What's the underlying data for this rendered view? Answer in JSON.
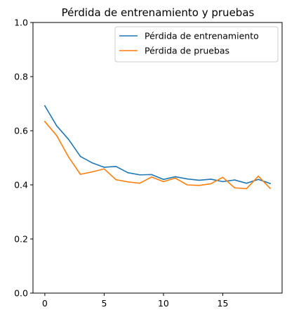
{
  "chart_data": {
    "type": "line",
    "title": "Pérdida de entrenamiento y pruebas",
    "xlabel": "",
    "ylabel": "",
    "xlim": [
      -1,
      20
    ],
    "ylim": [
      0,
      1
    ],
    "xticks": [
      "0",
      "5",
      "10",
      "15"
    ],
    "yticks": [
      "0.0",
      "0.2",
      "0.4",
      "0.6",
      "0.8",
      "1.0"
    ],
    "grid": false,
    "legend_position": "top-right",
    "x": [
      0,
      1,
      2,
      3,
      4,
      5,
      6,
      7,
      8,
      9,
      10,
      11,
      12,
      13,
      14,
      15,
      16,
      17,
      18,
      19
    ],
    "series": [
      {
        "name": "Pérdida de entrenamiento",
        "color": "#1f77b4",
        "values": [
          0.692,
          0.618,
          0.568,
          0.505,
          0.481,
          0.465,
          0.468,
          0.445,
          0.437,
          0.438,
          0.42,
          0.43,
          0.422,
          0.417,
          0.421,
          0.412,
          0.418,
          0.406,
          0.42,
          0.405
        ]
      },
      {
        "name": "Pérdida de pruebas",
        "color": "#ff7f0e",
        "values": [
          0.634,
          0.582,
          0.503,
          0.439,
          0.448,
          0.459,
          0.419,
          0.411,
          0.406,
          0.429,
          0.412,
          0.425,
          0.4,
          0.398,
          0.404,
          0.428,
          0.389,
          0.386,
          0.432,
          0.387
        ]
      }
    ]
  }
}
